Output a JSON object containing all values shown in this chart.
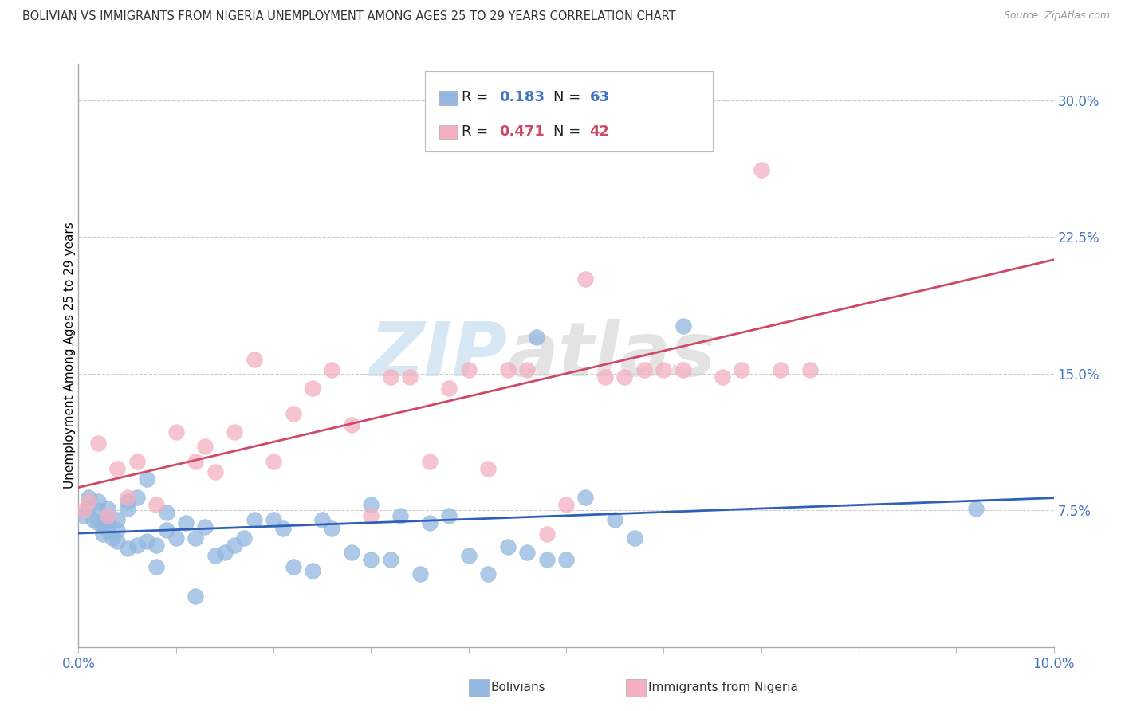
{
  "title": "BOLIVIAN VS IMMIGRANTS FROM NIGERIA UNEMPLOYMENT AMONG AGES 25 TO 29 YEARS CORRELATION CHART",
  "source": "Source: ZipAtlas.com",
  "ylabel": "Unemployment Among Ages 25 to 29 years",
  "ytick_vals": [
    0.075,
    0.15,
    0.225,
    0.3
  ],
  "ytick_labels": [
    "7.5%",
    "15.0%",
    "22.5%",
    "30.0%"
  ],
  "legend1_R": "0.183",
  "legend1_N": "63",
  "legend2_R": "0.471",
  "legend2_N": "42",
  "blue_color": "#92b8e0",
  "pink_color": "#f4b0c0",
  "blue_line_color": "#3060b8",
  "pink_line_color": "#d04868",
  "bolivians_x": [
    0.0005,
    0.001,
    0.001,
    0.0015,
    0.002,
    0.002,
    0.002,
    0.0025,
    0.0025,
    0.003,
    0.003,
    0.003,
    0.0035,
    0.004,
    0.004,
    0.004,
    0.005,
    0.005,
    0.005,
    0.006,
    0.006,
    0.007,
    0.007,
    0.008,
    0.008,
    0.009,
    0.009,
    0.01,
    0.011,
    0.012,
    0.012,
    0.013,
    0.014,
    0.015,
    0.016,
    0.017,
    0.018,
    0.02,
    0.021,
    0.022,
    0.024,
    0.025,
    0.026,
    0.028,
    0.03,
    0.03,
    0.032,
    0.033,
    0.035,
    0.036,
    0.038,
    0.04,
    0.042,
    0.044,
    0.046,
    0.047,
    0.048,
    0.05,
    0.052,
    0.055,
    0.057,
    0.062,
    0.092
  ],
  "bolivians_y": [
    0.072,
    0.076,
    0.082,
    0.07,
    0.068,
    0.075,
    0.08,
    0.062,
    0.068,
    0.064,
    0.07,
    0.076,
    0.06,
    0.058,
    0.064,
    0.07,
    0.054,
    0.08,
    0.076,
    0.056,
    0.082,
    0.058,
    0.092,
    0.044,
    0.056,
    0.064,
    0.074,
    0.06,
    0.068,
    0.028,
    0.06,
    0.066,
    0.05,
    0.052,
    0.056,
    0.06,
    0.07,
    0.07,
    0.065,
    0.044,
    0.042,
    0.07,
    0.065,
    0.052,
    0.048,
    0.078,
    0.048,
    0.072,
    0.04,
    0.068,
    0.072,
    0.05,
    0.04,
    0.055,
    0.052,
    0.17,
    0.048,
    0.048,
    0.082,
    0.07,
    0.06,
    0.176,
    0.076
  ],
  "nigeria_x": [
    0.0005,
    0.001,
    0.002,
    0.003,
    0.004,
    0.005,
    0.006,
    0.008,
    0.01,
    0.012,
    0.013,
    0.014,
    0.016,
    0.018,
    0.02,
    0.022,
    0.024,
    0.026,
    0.028,
    0.03,
    0.032,
    0.034,
    0.036,
    0.038,
    0.04,
    0.042,
    0.044,
    0.046,
    0.048,
    0.05,
    0.052,
    0.054,
    0.056,
    0.058,
    0.06,
    0.062,
    0.064,
    0.066,
    0.068,
    0.07,
    0.072,
    0.075
  ],
  "nigeria_y": [
    0.075,
    0.08,
    0.112,
    0.072,
    0.098,
    0.082,
    0.102,
    0.078,
    0.118,
    0.102,
    0.11,
    0.096,
    0.118,
    0.158,
    0.102,
    0.128,
    0.142,
    0.152,
    0.122,
    0.072,
    0.148,
    0.148,
    0.102,
    0.142,
    0.152,
    0.098,
    0.152,
    0.152,
    0.062,
    0.078,
    0.202,
    0.148,
    0.148,
    0.152,
    0.152,
    0.152,
    0.292,
    0.148,
    0.152,
    0.262,
    0.152,
    0.152
  ]
}
